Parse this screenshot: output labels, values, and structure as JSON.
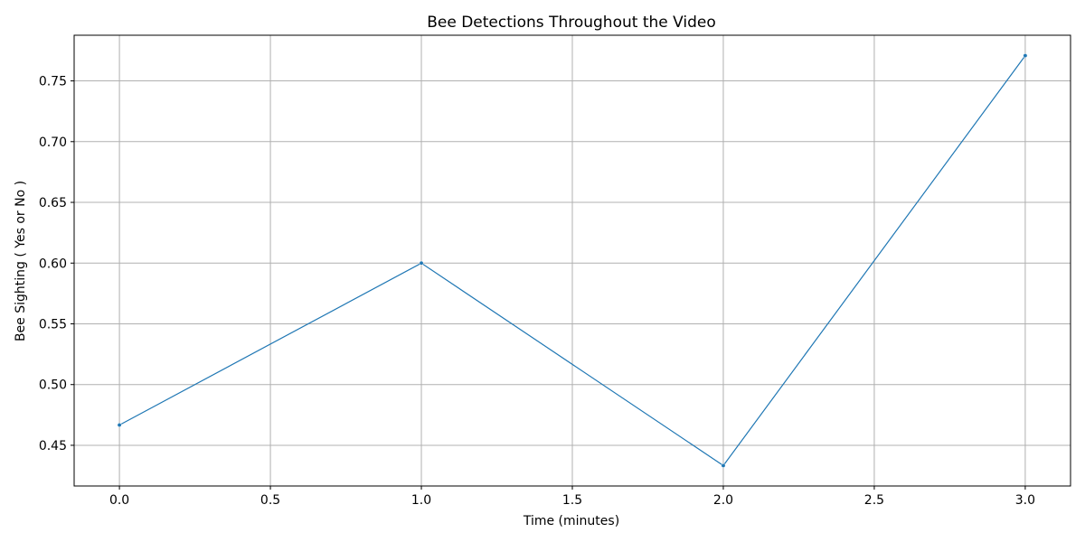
{
  "chart_data": {
    "type": "line",
    "title": "Bee Detections Throughout the Video",
    "xlabel": "Time (minutes)",
    "ylabel": "Bee Sighting ( Yes or No )",
    "x": [
      0.0,
      1.0,
      2.0,
      3.0
    ],
    "series": [
      {
        "values": [
          0.4667,
          0.6,
          0.4333,
          0.7708
        ],
        "color": "#1f77b4"
      }
    ],
    "xlim": [
      -0.15,
      3.15
    ],
    "ylim": [
      0.4165,
      0.7876
    ],
    "xticks": [
      0.0,
      0.5,
      1.0,
      1.5,
      2.0,
      2.5,
      3.0
    ],
    "xtick_labels": [
      "0.0",
      "0.5",
      "1.0",
      "1.5",
      "2.0",
      "2.5",
      "3.0"
    ],
    "yticks": [
      0.45,
      0.5,
      0.55,
      0.6,
      0.65,
      0.7,
      0.75
    ],
    "ytick_labels": [
      "0.45",
      "0.50",
      "0.55",
      "0.60",
      "0.65",
      "0.70",
      "0.75"
    ],
    "grid": true,
    "colors": {
      "grid": "#b0b0b0",
      "axes": "#000000"
    }
  }
}
